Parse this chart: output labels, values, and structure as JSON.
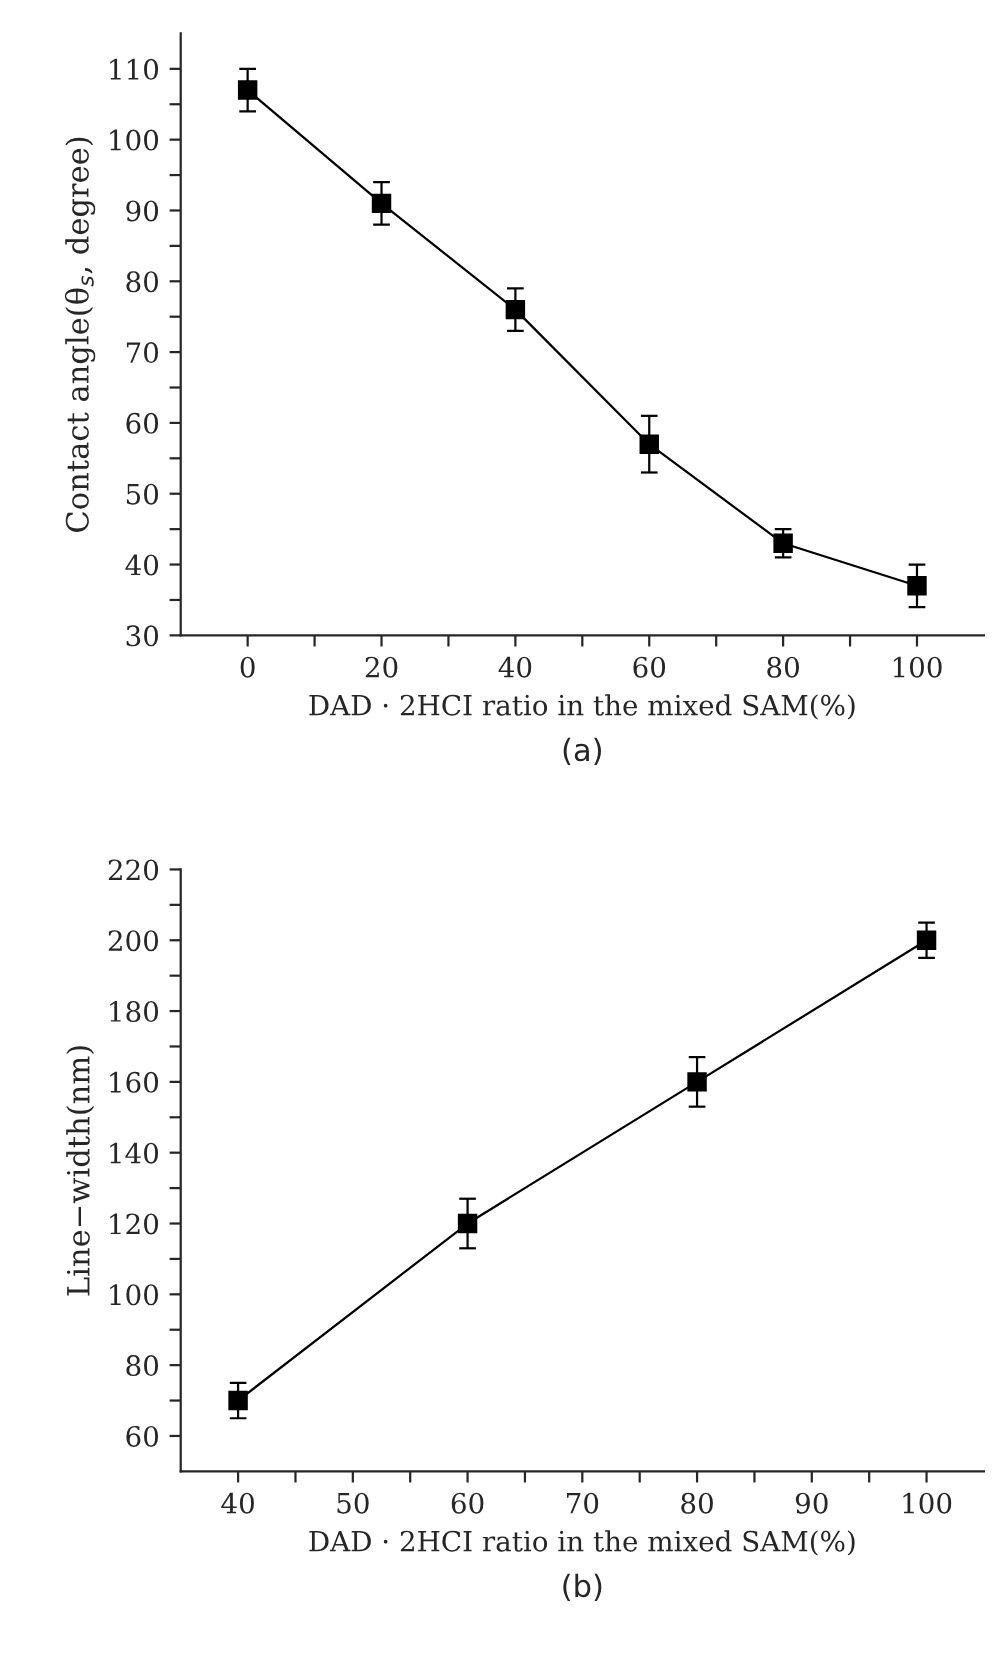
{
  "chart_data": [
    {
      "type": "line",
      "xlabel": "DAD · 2HCI ratio in the mixed SAM(%)",
      "ylabel": "Contact angle(θ$_{s}$, degree)",
      "annotations": [
        "(a)"
      ],
      "x": [
        0,
        20,
        40,
        60,
        80,
        100
      ],
      "series": [
        {
          "color": "#000000",
          "values": [
            107,
            91,
            76,
            57,
            43,
            37
          ],
          "errors": [
            3,
            3,
            3,
            4,
            2,
            3
          ]
        }
      ],
      "xlim": [
        -10,
        110
      ],
      "ylim": [
        30,
        115
      ],
      "xticks": [
        0,
        {
          "value": 10,
          "label": null
        },
        20,
        {
          "value": 30,
          "label": null
        },
        40,
        {
          "value": 50,
          "label": null
        },
        60,
        {
          "value": 70,
          "label": null
        },
        80,
        {
          "value": 90,
          "label": null
        },
        100
      ],
      "yticks": [
        30,
        {
          "value": 35,
          "label": null
        },
        40,
        {
          "value": 45,
          "label": null
        },
        50,
        {
          "value": 55,
          "label": null
        },
        60,
        {
          "value": 65,
          "label": null
        },
        70,
        {
          "value": 75,
          "label": null
        },
        80,
        {
          "value": 85,
          "label": null
        },
        90,
        {
          "value": 95,
          "label": null
        },
        100,
        {
          "value": 105,
          "label": null
        },
        110
      ],
      "marker": "square",
      "line_style": "solid",
      "grid": false,
      "legend": false
    },
    {
      "type": "line",
      "xlabel": "DAD · 2HCI ratio in the mixed SAM(%)",
      "ylabel": "Line−width(nm)",
      "annotations": [
        "(b)"
      ],
      "x": [
        40,
        60,
        80,
        100
      ],
      "series": [
        {
          "color": "#000000",
          "values": [
            70,
            120,
            160,
            200
          ],
          "errors": [
            5,
            7,
            7,
            5
          ]
        }
      ],
      "xlim": [
        35,
        105
      ],
      "ylim": [
        50,
        220
      ],
      "xticks": [
        40,
        {
          "value": 45,
          "label": null
        },
        50,
        {
          "value": 55,
          "label": null
        },
        60,
        {
          "value": 65,
          "label": null
        },
        70,
        {
          "value": 75,
          "label": null
        },
        80,
        {
          "value": 85,
          "label": null
        },
        90,
        {
          "value": 95,
          "label": null
        },
        100
      ],
      "yticks": [
        60,
        {
          "value": 70,
          "label": null
        },
        80,
        {
          "value": 90,
          "label": null
        },
        100,
        {
          "value": 110,
          "label": null
        },
        120,
        {
          "value": 130,
          "label": null
        },
        140,
        {
          "value": 150,
          "label": null
        },
        160,
        {
          "value": 170,
          "label": null
        },
        180,
        {
          "value": 190,
          "label": null
        },
        200,
        {
          "value": 210,
          "label": null
        },
        220
      ],
      "marker": "square",
      "line_style": "solid",
      "grid": false,
      "legend": false
    }
  ]
}
